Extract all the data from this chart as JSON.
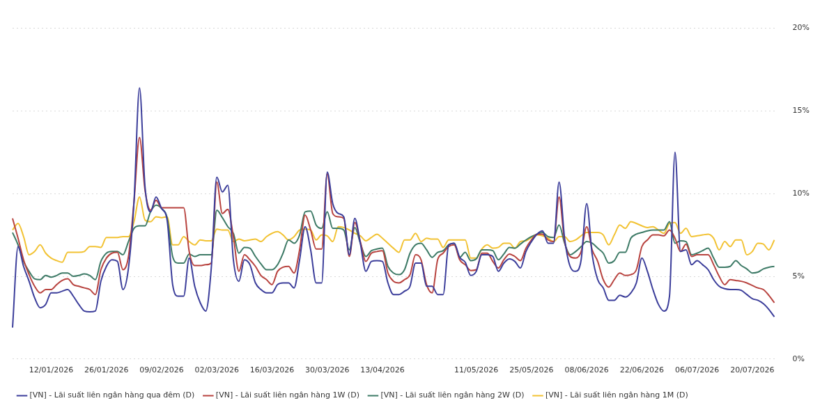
{
  "chart_data": {
    "type": "line",
    "categories": [
      null,
      null,
      null,
      null,
      null,
      null,
      null,
      "12/01/2026",
      null,
      null,
      null,
      null,
      null,
      null,
      null,
      null,
      null,
      "26/01/2026",
      null,
      null,
      null,
      null,
      null,
      null,
      null,
      null,
      null,
      "09/02/2026",
      null,
      null,
      null,
      null,
      null,
      null,
      null,
      null,
      null,
      "02/03/2026",
      null,
      null,
      null,
      null,
      null,
      null,
      null,
      null,
      null,
      "16/03/2026",
      null,
      null,
      null,
      null,
      null,
      null,
      null,
      null,
      null,
      "30/03/2026",
      null,
      null,
      null,
      null,
      null,
      null,
      null,
      null,
      null,
      "13/04/2026",
      null,
      null,
      null,
      null,
      null,
      null,
      null,
      null,
      null,
      null,
      null,
      null,
      null,
      null,
      null,
      null,
      "11/05/2026",
      null,
      null,
      null,
      null,
      null,
      null,
      null,
      null,
      null,
      "25/05/2026",
      null,
      null,
      null,
      null,
      null,
      null,
      null,
      null,
      null,
      "08/06/2026",
      null,
      null,
      null,
      null,
      null,
      null,
      null,
      null,
      null,
      "22/06/2026",
      null,
      null,
      null,
      null,
      null,
      null,
      null,
      null,
      null,
      "06/07/2026",
      null,
      null,
      null,
      null,
      null,
      null,
      null,
      null,
      null,
      "20/07/2026",
      null,
      null,
      null,
      null
    ],
    "series": [
      {
        "name": "[VN] - Lãi suất liên ngân hàng qua đêm (D)",
        "color": "#3b3d9a",
        "values": [
          1.9,
          6.8,
          5.6,
          4.7,
          3.7,
          3.1,
          3.3,
          4.0,
          4.0,
          4.1,
          4.2,
          3.8,
          3.3,
          2.9,
          2.85,
          2.9,
          4.7,
          5.6,
          6.0,
          5.9,
          4.2,
          5.5,
          9.5,
          16.4,
          10.4,
          8.9,
          9.8,
          9.1,
          8.4,
          4.5,
          3.8,
          3.8,
          6.1,
          4.4,
          3.4,
          2.9,
          5.5,
          11.0,
          10.1,
          10.5,
          6.0,
          4.7,
          6.0,
          5.7,
          4.6,
          4.2,
          4.0,
          4.0,
          4.5,
          4.6,
          4.6,
          4.3,
          6.0,
          8.0,
          6.6,
          4.6,
          4.6,
          11.3,
          9.4,
          8.8,
          8.6,
          6.3,
          8.5,
          7.0,
          5.3,
          5.9,
          5.95,
          5.9,
          4.6,
          3.9,
          3.9,
          4.1,
          4.4,
          5.8,
          5.8,
          4.4,
          4.4,
          3.9,
          3.9,
          6.9,
          7.0,
          6.15,
          5.85,
          5.05,
          5.3,
          6.3,
          6.3,
          6.2,
          5.3,
          5.8,
          6.05,
          5.9,
          5.5,
          6.5,
          7.1,
          7.55,
          7.75,
          7.0,
          7.0,
          10.7,
          7.3,
          5.6,
          5.3,
          6.0,
          9.4,
          6.3,
          4.8,
          4.3,
          3.55,
          3.55,
          3.85,
          3.75,
          4.0,
          4.6,
          6.1,
          5.3,
          4.2,
          3.3,
          2.9,
          3.8,
          12.5,
          6.5,
          6.6,
          5.7,
          5.95,
          5.7,
          5.4,
          4.8,
          4.4,
          4.25,
          4.2,
          4.2,
          4.15,
          3.9,
          3.65,
          3.55,
          3.35,
          3.0,
          2.55
        ]
      },
      {
        "name": "[VN] - Lãi suất liên ngân hàng 1W (D)",
        "color": "#b8433f",
        "values": [
          8.5,
          7.3,
          6.0,
          5.1,
          4.4,
          4.0,
          4.2,
          4.2,
          4.5,
          4.75,
          4.85,
          4.5,
          4.4,
          4.3,
          4.2,
          3.9,
          5.4,
          6.1,
          6.4,
          6.45,
          5.4,
          6.2,
          9.5,
          13.4,
          10.2,
          9.0,
          9.6,
          9.15,
          9.15,
          9.15,
          9.15,
          9.15,
          6.5,
          5.65,
          5.65,
          5.7,
          5.8,
          10.7,
          8.8,
          9.05,
          7.4,
          5.3,
          6.3,
          6.0,
          5.6,
          5.05,
          4.8,
          4.5,
          5.3,
          5.55,
          5.6,
          5.2,
          6.6,
          8.7,
          7.8,
          6.65,
          6.65,
          11.2,
          8.8,
          8.6,
          8.5,
          6.2,
          8.25,
          7.1,
          5.9,
          6.4,
          6.5,
          6.55,
          5.2,
          4.7,
          4.6,
          4.8,
          5.1,
          6.3,
          6.0,
          4.5,
          4.0,
          6.0,
          6.4,
          6.8,
          6.9,
          6.0,
          5.7,
          5.35,
          5.4,
          6.4,
          6.4,
          5.9,
          5.5,
          6.0,
          6.35,
          6.2,
          5.95,
          6.7,
          7.2,
          7.55,
          7.55,
          7.2,
          7.1,
          9.8,
          7.1,
          6.2,
          6.1,
          6.5,
          8.0,
          6.6,
          5.9,
          4.8,
          4.35,
          4.8,
          5.2,
          5.05,
          5.1,
          5.4,
          6.8,
          7.2,
          7.5,
          7.5,
          7.45,
          7.8,
          7.3,
          6.5,
          6.95,
          6.2,
          6.3,
          6.3,
          6.3,
          5.7,
          5.0,
          4.5,
          4.8,
          4.75,
          4.7,
          4.6,
          4.45,
          4.3,
          4.2,
          3.85,
          3.4
        ]
      },
      {
        "name": "[VN] - Lãi suất liên ngân hàng 2W (D)",
        "color": "#3d7a66",
        "values": [
          7.65,
          6.9,
          5.9,
          5.3,
          4.85,
          4.8,
          5.05,
          4.95,
          5.05,
          5.2,
          5.2,
          5.0,
          5.05,
          5.15,
          5.05,
          4.8,
          5.9,
          6.4,
          6.5,
          6.5,
          6.3,
          7.1,
          7.9,
          8.05,
          8.05,
          8.9,
          9.3,
          9.1,
          8.55,
          6.2,
          5.8,
          5.8,
          6.35,
          6.2,
          6.3,
          6.3,
          6.3,
          9.0,
          8.55,
          8.0,
          7.6,
          6.4,
          6.75,
          6.7,
          6.2,
          5.75,
          5.4,
          5.4,
          5.7,
          6.4,
          7.2,
          7.0,
          7.5,
          8.9,
          8.95,
          8.1,
          7.9,
          8.9,
          7.9,
          7.9,
          7.8,
          6.6,
          7.95,
          7.0,
          6.2,
          6.55,
          6.65,
          6.7,
          5.6,
          5.2,
          5.1,
          5.4,
          6.4,
          6.9,
          7.0,
          6.6,
          6.15,
          6.45,
          6.55,
          6.9,
          7.0,
          6.15,
          6.45,
          5.95,
          6.05,
          6.6,
          6.6,
          6.55,
          6.0,
          6.35,
          6.75,
          6.7,
          6.95,
          7.2,
          7.4,
          7.55,
          7.65,
          7.4,
          7.35,
          8.1,
          7.0,
          6.3,
          6.5,
          6.8,
          7.1,
          7.0,
          6.7,
          6.4,
          5.8,
          5.95,
          6.45,
          6.45,
          7.3,
          7.55,
          7.65,
          7.75,
          7.8,
          7.8,
          7.8,
          8.3,
          7.0,
          7.15,
          7.1,
          6.3,
          6.4,
          6.55,
          6.7,
          6.1,
          5.55,
          5.55,
          5.6,
          5.95,
          5.65,
          5.45,
          5.2,
          5.25,
          5.45,
          5.55,
          5.6
        ]
      },
      {
        "name": "[VN] - Lãi suất liên ngân hàng 1M (D)",
        "color": "#f2c232",
        "values": [
          7.8,
          8.2,
          7.4,
          6.3,
          6.5,
          6.9,
          6.4,
          6.1,
          5.95,
          5.85,
          6.45,
          6.45,
          6.45,
          6.5,
          6.8,
          6.8,
          6.75,
          7.35,
          7.35,
          7.35,
          7.4,
          7.4,
          8.3,
          9.8,
          8.4,
          8.3,
          8.6,
          8.55,
          8.6,
          6.9,
          6.9,
          7.4,
          7.1,
          6.9,
          7.2,
          7.15,
          7.15,
          7.85,
          7.8,
          7.8,
          7.1,
          7.25,
          7.15,
          7.2,
          7.25,
          7.1,
          7.4,
          7.6,
          7.7,
          7.5,
          7.2,
          7.4,
          7.8,
          7.85,
          7.8,
          7.2,
          7.5,
          7.45,
          7.1,
          8.0,
          7.95,
          7.8,
          7.6,
          7.45,
          7.15,
          7.35,
          7.55,
          7.3,
          7.0,
          6.7,
          6.45,
          7.2,
          7.2,
          7.6,
          7.1,
          7.3,
          7.25,
          7.25,
          6.75,
          7.2,
          7.2,
          7.2,
          7.2,
          6.1,
          6.1,
          6.65,
          6.9,
          6.7,
          6.75,
          7.0,
          7.0,
          6.7,
          7.1,
          7.15,
          7.35,
          7.5,
          7.45,
          7.3,
          7.1,
          7.4,
          7.4,
          7.1,
          7.2,
          7.45,
          7.65,
          7.65,
          7.65,
          7.5,
          6.9,
          7.5,
          8.1,
          7.9,
          8.3,
          8.2,
          8.05,
          7.95,
          8.0,
          7.8,
          7.6,
          8.2,
          8.25,
          7.6,
          7.9,
          7.4,
          7.45,
          7.5,
          7.55,
          7.3,
          6.6,
          7.1,
          6.8,
          7.2,
          7.2,
          6.3,
          6.5,
          7.0,
          6.95,
          6.6,
          7.2
        ]
      }
    ],
    "ylim": [
      0,
      20
    ],
    "yticks": [
      {
        "value": 0,
        "label": "0%"
      },
      {
        "value": 5,
        "label": "5%"
      },
      {
        "value": 10,
        "label": "10%"
      },
      {
        "value": 15,
        "label": "15%"
      },
      {
        "value": 20,
        "label": "20%"
      }
    ],
    "grid": "y",
    "legend": "bottom",
    "marker": "none",
    "line_style": "solid"
  }
}
